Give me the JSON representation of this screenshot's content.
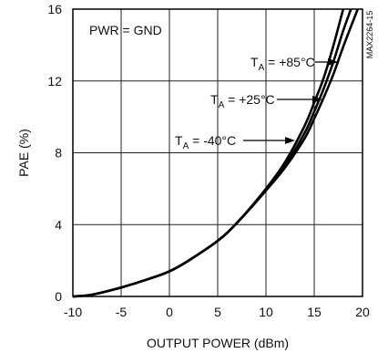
{
  "chart_data": {
    "type": "line",
    "title": "",
    "xlabel": "OUTPUT POWER (dBm)",
    "ylabel": "PAE (%)",
    "xlim": [
      -10,
      20
    ],
    "ylim": [
      0,
      16
    ],
    "xticks": [
      -10,
      -5,
      0,
      5,
      10,
      15,
      20
    ],
    "yticks": [
      0,
      4,
      8,
      12,
      16
    ],
    "grid": true,
    "legend": "inline-annotations-with-arrows",
    "series": [
      {
        "name": "TA = +85°C",
        "x": [
          -10,
          -8,
          -5,
          -2,
          0,
          2,
          5,
          7,
          10,
          12,
          14,
          15,
          16,
          17,
          18
        ],
        "y": [
          0,
          0.1,
          0.5,
          1.0,
          1.4,
          2.0,
          3.1,
          4.1,
          6.0,
          7.5,
          9.5,
          10.8,
          12.2,
          14.0,
          16.0
        ]
      },
      {
        "name": "TA = +25°C",
        "x": [
          -10,
          -8,
          -5,
          -2,
          0,
          2,
          5,
          7,
          10,
          12,
          14,
          15,
          16,
          17,
          18,
          18.8
        ],
        "y": [
          0,
          0.1,
          0.5,
          1.0,
          1.4,
          2.0,
          3.1,
          4.1,
          5.9,
          7.3,
          9.1,
          10.3,
          11.6,
          13.1,
          14.8,
          16.0
        ]
      },
      {
        "name": "TA = -40°C",
        "x": [
          -10,
          -8,
          -5,
          -2,
          0,
          2,
          5,
          7,
          10,
          12,
          14,
          15,
          16,
          17,
          18,
          19.5
        ],
        "y": [
          0,
          0.1,
          0.5,
          1.0,
          1.4,
          2.0,
          3.1,
          4.1,
          5.9,
          7.2,
          8.8,
          9.9,
          11.1,
          12.4,
          13.9,
          16.0
        ]
      }
    ],
    "annotations": {
      "condition": "PWR = GND",
      "labels": [
        {
          "prefix": "T",
          "sub": "A",
          "rest": " = +85°C"
        },
        {
          "prefix": "T",
          "sub": "A",
          "rest": " = +25°C"
        },
        {
          "prefix": "T",
          "sub": "A",
          "rest": " = -40°C"
        }
      ]
    },
    "part_number": "MAX2264-15"
  }
}
